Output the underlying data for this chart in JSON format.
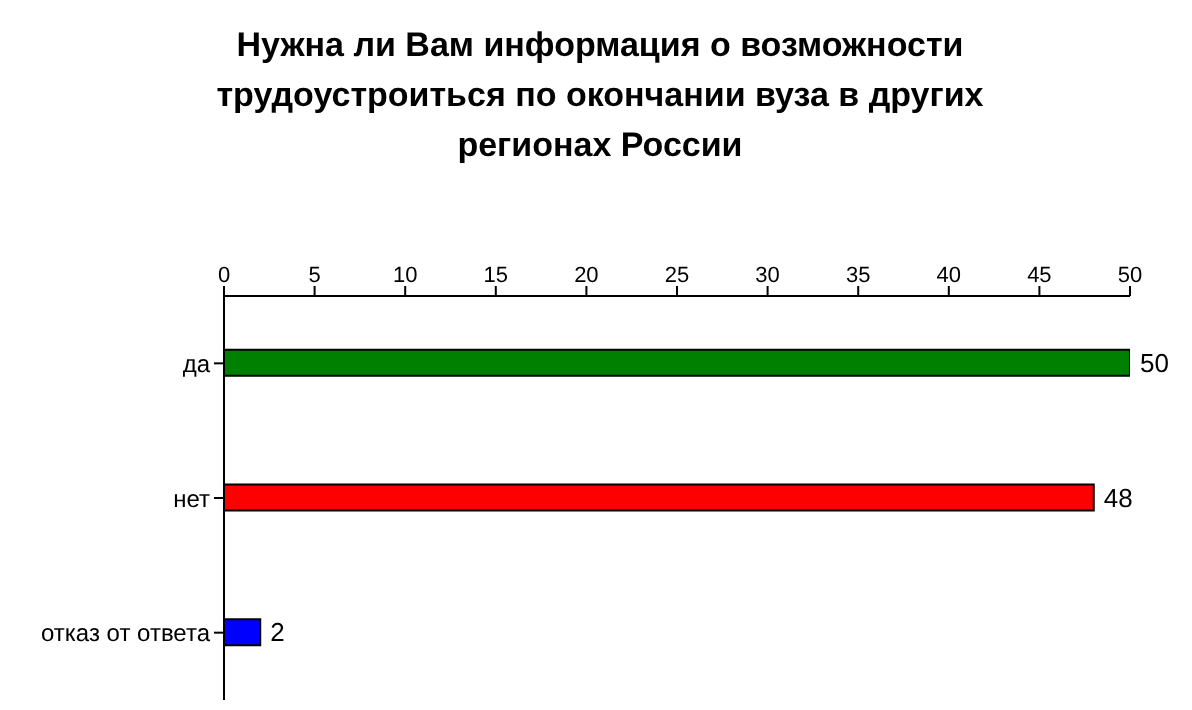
{
  "chart_data": {
    "type": "bar",
    "orientation": "horizontal",
    "title": "Нужна ли Вам информация о возможности трудоустроиться по окончании вуза в других регионах России",
    "categories": [
      "да",
      "нет",
      "отказ от ответа"
    ],
    "values": [
      50,
      48,
      2
    ],
    "colors": [
      "#008000",
      "#ff0000",
      "#0000ff"
    ],
    "xlim": [
      0,
      50
    ],
    "xticks": [
      0,
      5,
      10,
      15,
      20,
      25,
      30,
      35,
      40,
      45,
      50
    ],
    "data_labels": true,
    "grid": false
  }
}
